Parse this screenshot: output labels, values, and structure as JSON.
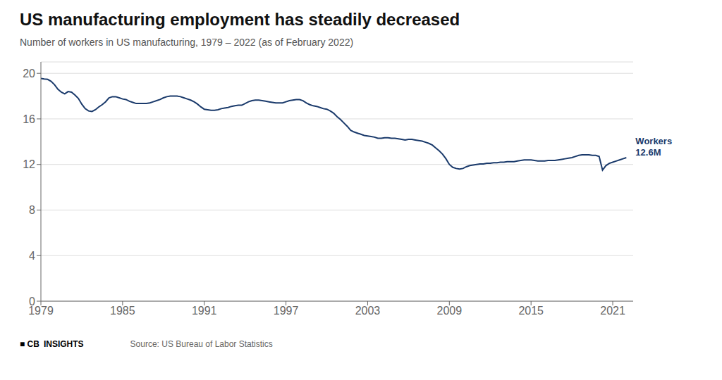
{
  "chart_data": {
    "type": "line",
    "title": "US manufacturing employment has steadily decreased",
    "subtitle": "Number of workers in US manufacturing, 1979 – 2022 (as of February 2022)",
    "source": "Source: US Bureau of Labor Statistics",
    "logo": [
      "■ CB",
      "INSIGHTS"
    ],
    "color": "#1a3a6b",
    "grid": true,
    "xlim": [
      1979,
      2022.5
    ],
    "xticks": [
      1979,
      1985,
      1991,
      1997,
      2003,
      2009,
      2015,
      2021
    ],
    "ylim": [
      0,
      21
    ],
    "yticks": [
      0,
      4,
      8,
      12,
      16,
      20
    ],
    "annotations": [
      {
        "text": "Workers\n12.6M",
        "x": 2022.0,
        "y": 12.6,
        "color": "#1a3a6b"
      }
    ],
    "x": [
      1979.0,
      1979.25,
      1979.5,
      1979.75,
      1980.0,
      1980.25,
      1980.5,
      1980.75,
      1981.0,
      1981.25,
      1981.5,
      1981.75,
      1982.0,
      1982.25,
      1982.5,
      1982.75,
      1983.0,
      1983.25,
      1983.5,
      1983.75,
      1984.0,
      1984.25,
      1984.5,
      1984.75,
      1985.0,
      1985.25,
      1985.5,
      1985.75,
      1986.0,
      1986.25,
      1986.5,
      1986.75,
      1987.0,
      1987.25,
      1987.5,
      1987.75,
      1988.0,
      1988.25,
      1988.5,
      1988.75,
      1989.0,
      1989.25,
      1989.5,
      1989.75,
      1990.0,
      1990.25,
      1990.5,
      1990.75,
      1991.0,
      1991.25,
      1991.5,
      1991.75,
      1992.0,
      1992.25,
      1992.5,
      1992.75,
      1993.0,
      1993.25,
      1993.5,
      1993.75,
      1994.0,
      1994.25,
      1994.5,
      1994.75,
      1995.0,
      1995.25,
      1995.5,
      1995.75,
      1996.0,
      1996.25,
      1996.5,
      1996.75,
      1997.0,
      1997.25,
      1997.5,
      1997.75,
      1998.0,
      1998.25,
      1998.5,
      1998.75,
      1999.0,
      1999.25,
      1999.5,
      1999.75,
      2000.0,
      2000.25,
      2000.5,
      2000.75,
      2001.0,
      2001.25,
      2001.5,
      2001.75,
      2002.0,
      2002.25,
      2002.5,
      2002.75,
      2003.0,
      2003.25,
      2003.5,
      2003.75,
      2004.0,
      2004.25,
      2004.5,
      2004.75,
      2005.0,
      2005.25,
      2005.5,
      2005.75,
      2006.0,
      2006.25,
      2006.5,
      2006.75,
      2007.0,
      2007.25,
      2007.5,
      2007.75,
      2008.0,
      2008.25,
      2008.5,
      2008.75,
      2009.0,
      2009.25,
      2009.5,
      2009.75,
      2010.0,
      2010.25,
      2010.5,
      2010.75,
      2011.0,
      2011.25,
      2011.5,
      2011.75,
      2012.0,
      2012.25,
      2012.5,
      2012.75,
      2013.0,
      2013.25,
      2013.5,
      2013.75,
      2014.0,
      2014.25,
      2014.5,
      2014.75,
      2015.0,
      2015.25,
      2015.5,
      2015.75,
      2016.0,
      2016.25,
      2016.5,
      2016.75,
      2017.0,
      2017.25,
      2017.5,
      2017.75,
      2018.0,
      2018.25,
      2018.5,
      2018.75,
      2019.0,
      2019.25,
      2019.5,
      2019.75,
      2020.0,
      2020.25,
      2020.5,
      2020.75,
      2021.0,
      2021.25,
      2021.5,
      2021.75,
      2022.0
    ],
    "values": [
      19.553,
      19.5,
      19.47,
      19.3,
      19.0,
      18.6,
      18.35,
      18.2,
      18.4,
      18.35,
      18.1,
      17.8,
      17.3,
      16.9,
      16.7,
      16.65,
      16.8,
      17.05,
      17.25,
      17.5,
      17.85,
      17.95,
      17.95,
      17.85,
      17.75,
      17.7,
      17.55,
      17.45,
      17.35,
      17.35,
      17.35,
      17.35,
      17.4,
      17.5,
      17.6,
      17.7,
      17.85,
      17.95,
      18.0,
      18.0,
      18.0,
      17.95,
      17.85,
      17.75,
      17.65,
      17.5,
      17.3,
      17.05,
      16.85,
      16.8,
      16.75,
      16.75,
      16.8,
      16.9,
      16.95,
      17.0,
      17.1,
      17.15,
      17.2,
      17.2,
      17.35,
      17.5,
      17.6,
      17.65,
      17.65,
      17.6,
      17.55,
      17.5,
      17.45,
      17.4,
      17.4,
      17.4,
      17.5,
      17.6,
      17.65,
      17.7,
      17.7,
      17.6,
      17.4,
      17.25,
      17.15,
      17.1,
      17.0,
      16.9,
      16.85,
      16.7,
      16.5,
      16.2,
      15.95,
      15.65,
      15.35,
      15.0,
      14.85,
      14.75,
      14.65,
      14.55,
      14.5,
      14.45,
      14.4,
      14.3,
      14.3,
      14.35,
      14.35,
      14.3,
      14.3,
      14.25,
      14.2,
      14.15,
      14.2,
      14.2,
      14.15,
      14.1,
      14.05,
      13.95,
      13.85,
      13.7,
      13.45,
      13.2,
      12.9,
      12.5,
      12.0,
      11.75,
      11.65,
      11.6,
      11.65,
      11.8,
      11.9,
      11.95,
      12.0,
      12.05,
      12.05,
      12.1,
      12.1,
      12.15,
      12.15,
      12.2,
      12.2,
      12.25,
      12.25,
      12.25,
      12.3,
      12.35,
      12.4,
      12.4,
      12.4,
      12.35,
      12.3,
      12.3,
      12.3,
      12.35,
      12.35,
      12.35,
      12.4,
      12.45,
      12.5,
      12.55,
      12.6,
      12.7,
      12.8,
      12.85,
      12.85,
      12.85,
      12.8,
      12.8,
      12.7,
      11.5,
      11.9,
      12.1,
      12.2,
      12.3,
      12.4,
      12.5,
      12.6
    ]
  }
}
